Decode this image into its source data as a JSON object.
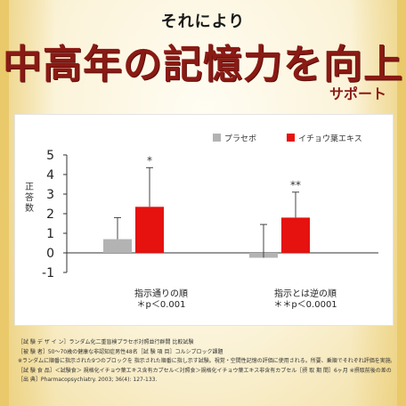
{
  "header": {
    "kicker": "それにより",
    "title": "中高年の記憶力を向上",
    "subtitle": "サポート"
  },
  "chart_data": {
    "type": "bar",
    "ylabel": "正答数",
    "ylim": [
      -1,
      5
    ],
    "yticks": [
      -1,
      0,
      1,
      2,
      3,
      4,
      5
    ],
    "legend_position": "top-right",
    "categories": [
      {
        "label": "指示通りの順",
        "sig": "＊p＜0.001"
      },
      {
        "label": "指示とは逆の順",
        "sig": "＊＊p＜0.0001"
      }
    ],
    "series": [
      {
        "name": "プラセボ",
        "color": "#b3b3b3",
        "values": [
          0.7,
          -0.25
        ],
        "err_high": [
          1.8,
          1.45
        ]
      },
      {
        "name": "イチョウ葉エキス",
        "color": "#e5120f",
        "values": [
          2.35,
          1.8
        ],
        "err_high": [
          4.35,
          3.1
        ]
      }
    ],
    "annotations": [
      "*",
      "**"
    ]
  },
  "notes": [
    "［試 験 デ ザ イ ン］ランダム化二重盲検プラセボ対照並行群間 比較試験",
    "［被 験 者］50〜70歳の健康な非認知症男性48名［試 験 項 目］コルシブロック課題",
    "※ランダムに順番に指示された9つのブロックを 指示された順番に指し示す試験。視覚・空間性記憶の評価に使用される。所要、乗順でそれぞれ評価を実施。",
    "［試 験 食 品］＜試験食＞ 規格化イチョウ葉エキス含有カプセル＜対照食＞規格化イチョウ葉エキス非含有カプセル［摂 取 期 間］6ヶ月 ※摂取前後の差のデータ",
    "［出 典］Pharmacopsychiatry. 2003; 36(4): 127-133."
  ]
}
